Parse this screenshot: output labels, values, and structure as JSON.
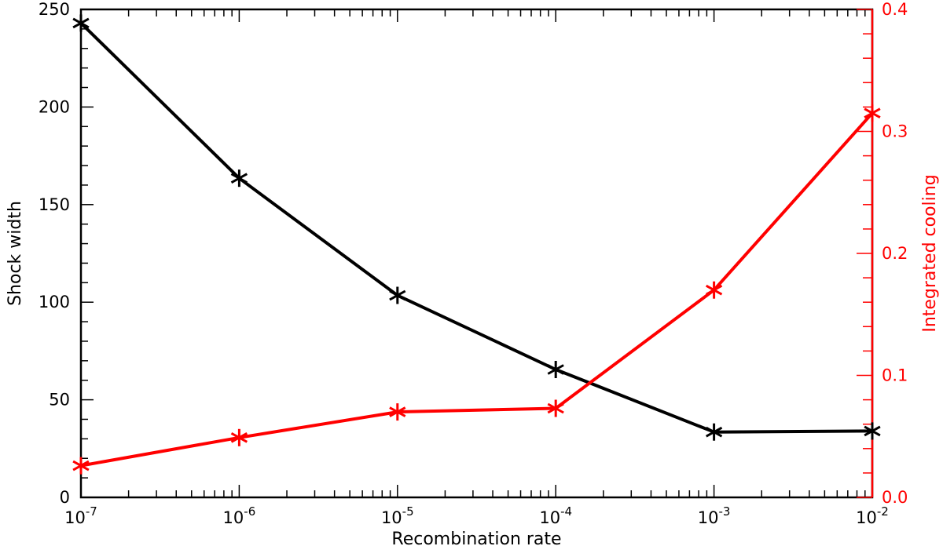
{
  "chart_data": {
    "type": "line",
    "xlabel": "Recombination rate",
    "ylabel": "Shock width",
    "y2label": "Integrated cooling",
    "x": [
      1e-07,
      1e-06,
      1e-05,
      0.0001,
      0.001,
      0.01
    ],
    "xscale": "log",
    "xlim": [
      1e-07,
      0.01
    ],
    "x_tick_labels": [
      {
        "base": "10",
        "exp": "-7"
      },
      {
        "base": "10",
        "exp": "-6"
      },
      {
        "base": "10",
        "exp": "-5"
      },
      {
        "base": "10",
        "exp": "-4"
      },
      {
        "base": "10",
        "exp": "-3"
      },
      {
        "base": "10",
        "exp": "-2"
      }
    ],
    "ylim": [
      0,
      250
    ],
    "y_ticks": [
      "0",
      "50",
      "100",
      "150",
      "200",
      "250"
    ],
    "y2lim": [
      0,
      0.4
    ],
    "y2_ticks": [
      "0.0",
      "0.1",
      "0.2",
      "0.3",
      "0.4"
    ],
    "grid": false,
    "legend": "none",
    "series": [
      {
        "axis": "left",
        "color": "#000000",
        "marker": "asterisk",
        "values": [
          243,
          163.5,
          103.5,
          65.5,
          33.5,
          34
        ]
      },
      {
        "axis": "right",
        "color": "#ff0000",
        "marker": "asterisk",
        "values": [
          0.026,
          0.049,
          0.07,
          0.073,
          0.17,
          0.315
        ]
      }
    ]
  }
}
